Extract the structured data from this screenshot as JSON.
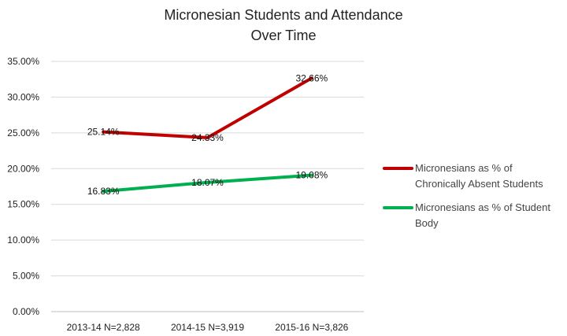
{
  "chart_data": {
    "type": "line",
    "title": [
      "Micronesian Students and Attendance",
      "Over Time"
    ],
    "categories": [
      "2013-14 N=2,828",
      "2014-15 N=3,919",
      "2015-16 N=3,826"
    ],
    "ylim": [
      0,
      35
    ],
    "yticks": [
      "0.00%",
      "5.00%",
      "10.00%",
      "15.00%",
      "20.00%",
      "25.00%",
      "30.00%",
      "35.00%"
    ],
    "grid": true,
    "legend_position": "right",
    "series": [
      {
        "name": "Micronesians as % of Chronically Absent Students",
        "legend_lines": [
          "Micronesians as % of",
          "Chronically Absent Students"
        ],
        "color": "#c00000",
        "values": [
          25.14,
          24.33,
          32.66
        ],
        "labels": [
          "25.14%",
          "24.33%",
          "32.66%"
        ]
      },
      {
        "name": "Micronesians as % of Student Body",
        "legend_lines": [
          "Micronesians as % of Student",
          "Body"
        ],
        "color": "#00b050",
        "values": [
          16.83,
          18.07,
          19.08
        ],
        "labels": [
          "16.83%",
          "18.07%",
          "19.08%"
        ]
      }
    ]
  }
}
